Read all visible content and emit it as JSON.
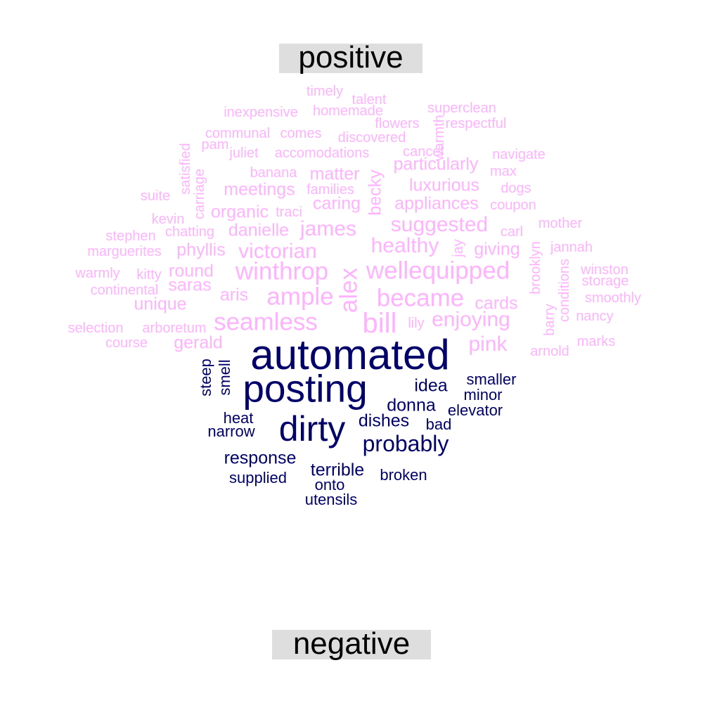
{
  "labels": {
    "positive": "positive",
    "negative": "negative"
  },
  "colors": {
    "positive": "#ffb3ff",
    "negative": "#00006b",
    "label_bg": "#dedede"
  },
  "positive_words": [
    {
      "text": "timely",
      "size": 20
    },
    {
      "text": "talent",
      "size": 20
    },
    {
      "text": "superclean",
      "size": 20
    },
    {
      "text": "inexpensive",
      "size": 20
    },
    {
      "text": "homemade",
      "size": 20
    },
    {
      "text": "flowers",
      "size": 20
    },
    {
      "text": "respectful",
      "size": 20
    },
    {
      "text": "pam",
      "size": 20
    },
    {
      "text": "communal",
      "size": 20
    },
    {
      "text": "comes",
      "size": 20
    },
    {
      "text": "discovered",
      "size": 20
    },
    {
      "text": "warmth",
      "size": 20,
      "rot": true
    },
    {
      "text": "satisfied",
      "size": 20,
      "rot": true
    },
    {
      "text": "juliet",
      "size": 20
    },
    {
      "text": "accomodations",
      "size": 20
    },
    {
      "text": "cancel",
      "size": 20
    },
    {
      "text": "navigate",
      "size": 20
    },
    {
      "text": "carriage",
      "size": 20,
      "rot": true
    },
    {
      "text": "banana",
      "size": 20
    },
    {
      "text": "matter",
      "size": 25
    },
    {
      "text": "becky",
      "size": 25,
      "rot": true
    },
    {
      "text": "particularly",
      "size": 25
    },
    {
      "text": "max",
      "size": 20
    },
    {
      "text": "suite",
      "size": 20
    },
    {
      "text": "meetings",
      "size": 25
    },
    {
      "text": "families",
      "size": 20
    },
    {
      "text": "luxurious",
      "size": 25
    },
    {
      "text": "dogs",
      "size": 20
    },
    {
      "text": "caring",
      "size": 25
    },
    {
      "text": "appliances",
      "size": 25
    },
    {
      "text": "coupon",
      "size": 20
    },
    {
      "text": "organic",
      "size": 25
    },
    {
      "text": "traci",
      "size": 20
    },
    {
      "text": "kevin",
      "size": 20
    },
    {
      "text": "suggested",
      "size": 30
    },
    {
      "text": "mother",
      "size": 20
    },
    {
      "text": "carl",
      "size": 20
    },
    {
      "text": "stephen",
      "size": 20
    },
    {
      "text": "chatting",
      "size": 20
    },
    {
      "text": "danielle",
      "size": 25
    },
    {
      "text": "james",
      "size": 30
    },
    {
      "text": "healthy",
      "size": 30
    },
    {
      "text": "jay",
      "size": 20,
      "rot": true
    },
    {
      "text": "giving",
      "size": 25
    },
    {
      "text": "jannah",
      "size": 20
    },
    {
      "text": "marguerites",
      "size": 20
    },
    {
      "text": "phyllis",
      "size": 25
    },
    {
      "text": "victorian",
      "size": 30
    },
    {
      "text": "brooklyn",
      "size": 20,
      "rot": true
    },
    {
      "text": "winthrop",
      "size": 35
    },
    {
      "text": "wellequipped",
      "size": 35
    },
    {
      "text": "alex",
      "size": 35,
      "rot": true
    },
    {
      "text": "warmly",
      "size": 20
    },
    {
      "text": "kitty",
      "size": 20
    },
    {
      "text": "round",
      "size": 25
    },
    {
      "text": "conditions",
      "size": 20,
      "rot": true
    },
    {
      "text": "winston",
      "size": 20
    },
    {
      "text": "storage",
      "size": 20
    },
    {
      "text": "continental",
      "size": 20
    },
    {
      "text": "saras",
      "size": 25
    },
    {
      "text": "aris",
      "size": 25
    },
    {
      "text": "ample",
      "size": 35
    },
    {
      "text": "became",
      "size": 35
    },
    {
      "text": "smoothly",
      "size": 20
    },
    {
      "text": "unique",
      "size": 25
    },
    {
      "text": "cards",
      "size": 25
    },
    {
      "text": "barry",
      "size": 20,
      "rot": true
    },
    {
      "text": "bill",
      "size": 40
    },
    {
      "text": "seamless",
      "size": 35
    },
    {
      "text": "enjoying",
      "size": 30
    },
    {
      "text": "nancy",
      "size": 20
    },
    {
      "text": "selection",
      "size": 20
    },
    {
      "text": "arboretum",
      "size": 20
    },
    {
      "text": "lily",
      "size": 20
    },
    {
      "text": "pink",
      "size": 30
    },
    {
      "text": "marks",
      "size": 20
    },
    {
      "text": "course",
      "size": 20
    },
    {
      "text": "gerald",
      "size": 25
    },
    {
      "text": "arnold",
      "size": 20
    }
  ],
  "negative_words": [
    {
      "text": "automated",
      "size": 60
    },
    {
      "text": "posting",
      "size": 55
    },
    {
      "text": "dirty",
      "size": 50
    },
    {
      "text": "steep",
      "size": 22,
      "rot": true
    },
    {
      "text": "smell",
      "size": 22,
      "rot": true
    },
    {
      "text": "idea",
      "size": 25
    },
    {
      "text": "smaller",
      "size": 22
    },
    {
      "text": "minor",
      "size": 22
    },
    {
      "text": "donna",
      "size": 25
    },
    {
      "text": "elevator",
      "size": 22
    },
    {
      "text": "heat",
      "size": 22
    },
    {
      "text": "dishes",
      "size": 25
    },
    {
      "text": "bad",
      "size": 22
    },
    {
      "text": "narrow",
      "size": 22
    },
    {
      "text": "probably",
      "size": 32
    },
    {
      "text": "response",
      "size": 25
    },
    {
      "text": "terrible",
      "size": 25
    },
    {
      "text": "broken",
      "size": 22
    },
    {
      "text": "supplied",
      "size": 22
    },
    {
      "text": "onto",
      "size": 22
    },
    {
      "text": "utensils",
      "size": 22
    }
  ]
}
